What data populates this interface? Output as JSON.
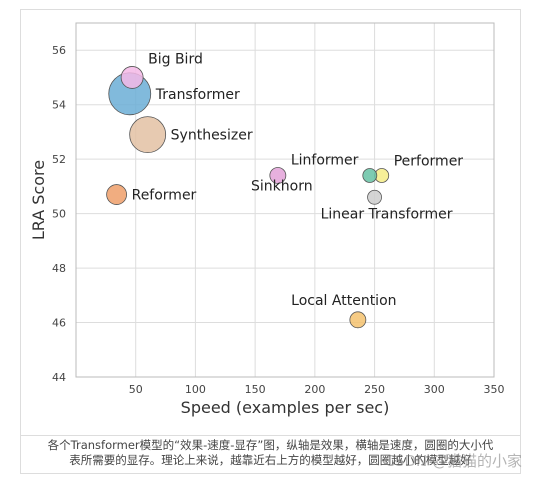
{
  "chart_data": {
    "type": "scatter",
    "xlabel": "Speed (examples per sec)",
    "ylabel": "LRA Score",
    "xlim": [
      0,
      350
    ],
    "ylim": [
      44,
      57
    ],
    "xticks": [
      50,
      100,
      150,
      200,
      250,
      300,
      350
    ],
    "yticks": [
      44,
      46,
      48,
      50,
      52,
      54,
      56
    ],
    "grid": true,
    "points": [
      {
        "label": "Big Bird",
        "x": 47,
        "y": 55.0,
        "size": 11,
        "color": "#f4b8e6",
        "label_pos": "right-up"
      },
      {
        "label": "Transformer",
        "x": 45,
        "y": 54.4,
        "size": 21,
        "color": "#6baed6",
        "label_pos": "right"
      },
      {
        "label": "Synthesizer",
        "x": 60,
        "y": 52.9,
        "size": 18,
        "color": "#e3c1a3",
        "label_pos": "right"
      },
      {
        "label": "Reformer",
        "x": 34,
        "y": 50.7,
        "size": 10,
        "color": "#ef9f6a",
        "label_pos": "right"
      },
      {
        "label": "Linformer",
        "x": 169,
        "y": 51.4,
        "size": 8,
        "color": "#e3a2d8",
        "label_pos": "right-up"
      },
      {
        "label": "Sinkhorn",
        "x": 169,
        "y": 51.4,
        "size": 0,
        "color": "#e3a2d8",
        "label_pos": "below-left"
      },
      {
        "label": "Performer",
        "x": 256,
        "y": 51.4,
        "size": 7,
        "color": "#f5ec86",
        "label_pos": "right-up"
      },
      {
        "label": "",
        "x": 246,
        "y": 51.4,
        "size": 7,
        "color": "#66c2a5",
        "label_pos": "none"
      },
      {
        "label": "Linear Transformer",
        "x": 250,
        "y": 50.6,
        "size": 7,
        "color": "#cccccc",
        "label_pos": "below"
      },
      {
        "label": "Local Attention",
        "x": 236,
        "y": 46.1,
        "size": 8,
        "color": "#f5c26e",
        "label_pos": "above-left"
      }
    ]
  },
  "caption": {
    "line1": "各个Transformer模型的“效果-速度-显存”图，纵轴是效果，横轴是速度，圆圈的大小代",
    "line2": "表所需要的显存。理论上来说，越靠近右上方的模型越好，圆圈越小的模型越好"
  },
  "watermark": "CSDN @猫猫的小家"
}
